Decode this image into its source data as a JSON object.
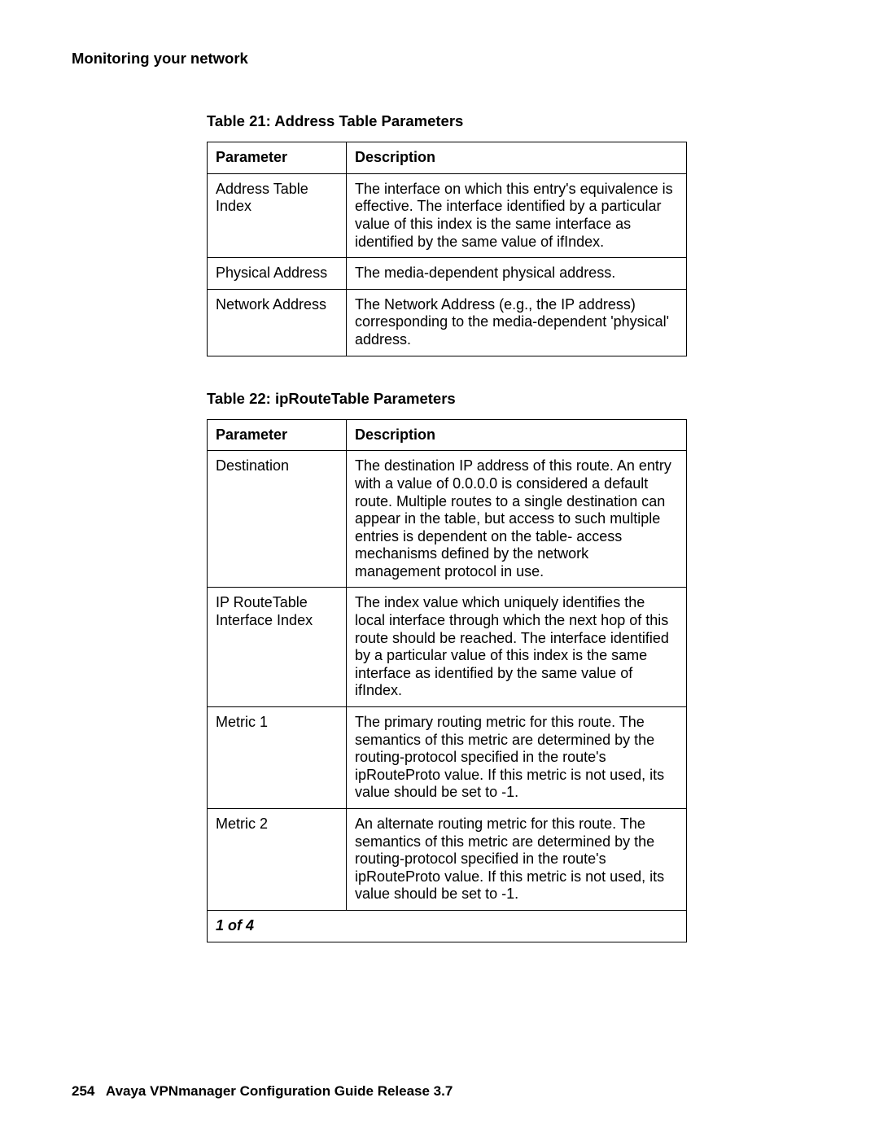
{
  "header": {
    "section_title": "Monitoring your network"
  },
  "tables": {
    "t1": {
      "caption": "Table 21: Address Table Parameters",
      "headers": {
        "param": "Parameter",
        "desc": "Description"
      },
      "rows": [
        {
          "param": "Address Table Index",
          "desc": "The interface on which this entry's equivalence is effective. The interface identified by a particular value of this index is the same interface as identified by the same value of ifIndex."
        },
        {
          "param": "Physical Address",
          "desc": "The media-dependent physical address."
        },
        {
          "param": "Network Address",
          "desc": "The Network Address (e.g., the IP address) corresponding to the media-dependent 'physical' address."
        }
      ]
    },
    "t2": {
      "caption": "Table 22: ipRouteTable Parameters",
      "headers": {
        "param": "Parameter",
        "desc": "Description"
      },
      "rows": [
        {
          "param": "Destination",
          "desc": "The destination IP address of this route. An entry with a value of 0.0.0.0 is considered a default route. Multiple routes to a single destination can appear in the table, but access to such multiple entries is dependent on the table- access mechanisms defined by the network management protocol in use."
        },
        {
          "param": "IP RouteTable Interface Index",
          "desc": "The index value which uniquely identifies the local interface through which the next hop of this route should be reached. The interface identified by a particular value of this index is the same interface as identified by the same value of ifIndex."
        },
        {
          "param": "Metric 1",
          "desc": "The primary routing metric for this route. The semantics of this metric are determined by the routing-protocol specified in the route's ipRouteProto value. If this metric is not used, its value should be set to -1."
        },
        {
          "param": "Metric 2",
          "desc": "An alternate routing metric for this route. The semantics of this metric are determined by the routing-protocol specified in the route's ipRouteProto value. If this metric is not used, its value should be set to -1."
        }
      ],
      "page_indicator": "1 of 4"
    }
  },
  "footer": {
    "page_number": "254",
    "doc_title": "Avaya VPNmanager Configuration Guide Release 3.7"
  }
}
